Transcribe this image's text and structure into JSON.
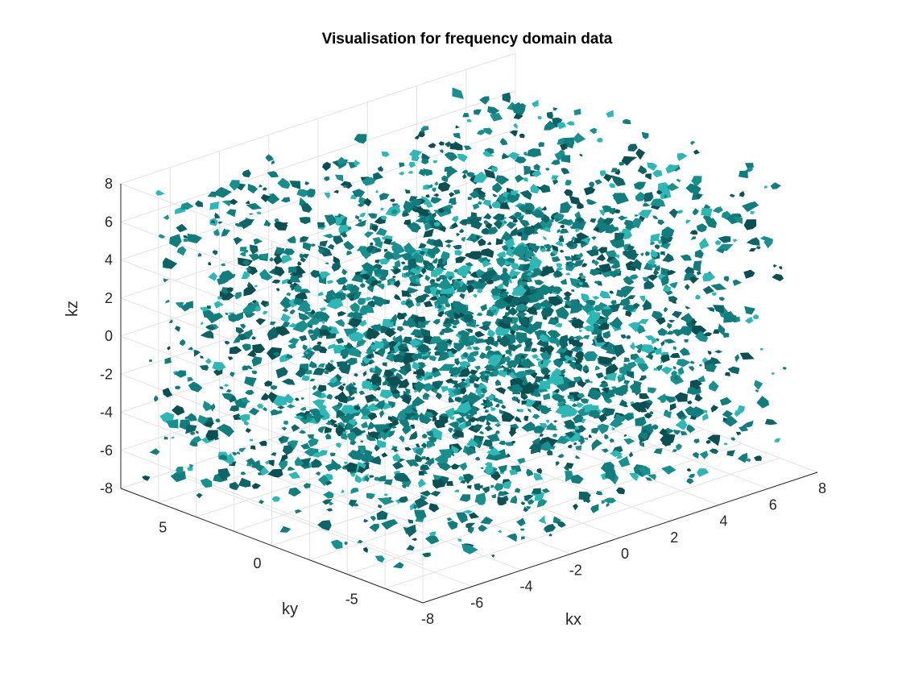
{
  "chart_data": {
    "type": "isosurface",
    "title": "Visualisation for frequency domain data",
    "xlabel": "kx",
    "ylabel": "ky",
    "zlabel": "kz",
    "xlim": [
      -8,
      8
    ],
    "ylim": [
      -8,
      8
    ],
    "zlim": [
      -8,
      8
    ],
    "xticks": [
      "-8",
      "-6",
      "-4",
      "-2",
      "0",
      "2",
      "4",
      "6",
      "8"
    ],
    "yticks": [
      "-5",
      "0",
      "5"
    ],
    "zticks": [
      "8",
      "6",
      "4",
      "2",
      "0",
      "-2",
      "-4",
      "-6",
      "-8"
    ],
    "grid": true,
    "view": "3-D isometric",
    "surface_color": "#137c7c",
    "surface_highlight": "#2fb7b5",
    "surface_shadow": "#0b4f52",
    "data_extent": {
      "x": [
        -7.5,
        7.5
      ],
      "y": [
        -7.5,
        7.5
      ],
      "z": [
        -7.5,
        7.5
      ]
    }
  }
}
